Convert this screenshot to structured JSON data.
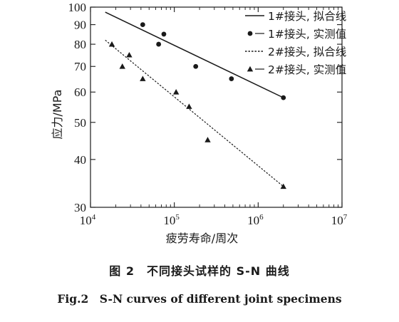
{
  "chart_data": {
    "type": "line",
    "title": "",
    "xlabel": "疲劳寿命/周次",
    "ylabel": "应力/MPa",
    "xscale": "log",
    "yscale": "log",
    "xlim": [
      10000,
      10000000
    ],
    "ylim": [
      30,
      100
    ],
    "x_ticks": [
      {
        "value": 10000,
        "base": "10",
        "exp": "4"
      },
      {
        "value": 100000,
        "base": "10",
        "exp": "5"
      },
      {
        "value": 1000000,
        "base": "10",
        "exp": "6"
      },
      {
        "value": 10000000,
        "base": "10",
        "exp": "7"
      }
    ],
    "y_ticks": [
      {
        "value": 30,
        "label": "30"
      },
      {
        "value": 40,
        "label": "40"
      },
      {
        "value": 50,
        "label": "50"
      },
      {
        "value": 60,
        "label": "60"
      },
      {
        "value": 70,
        "label": "70"
      },
      {
        "value": 80,
        "label": "80"
      },
      {
        "value": 90,
        "label": "90"
      },
      {
        "value": 100,
        "label": "100"
      }
    ],
    "legend_position": "top-right",
    "series": [
      {
        "name": "1#接头, 拟合线",
        "kind": "fit",
        "line_style": "solid",
        "points": [
          {
            "x": 15000,
            "y": 97
          },
          {
            "x": 2000000,
            "y": 58
          }
        ]
      },
      {
        "name": "1#接头, 实测值",
        "kind": "measured",
        "marker": "circle",
        "points": [
          {
            "x": 42000,
            "y": 90
          },
          {
            "x": 75000,
            "y": 85
          },
          {
            "x": 65000,
            "y": 80
          },
          {
            "x": 180000,
            "y": 70
          },
          {
            "x": 480000,
            "y": 65
          },
          {
            "x": 2000000,
            "y": 58
          }
        ]
      },
      {
        "name": "2#接头, 拟合线",
        "kind": "fit",
        "line_style": "dashed",
        "points": [
          {
            "x": 15000,
            "y": 82
          },
          {
            "x": 2000000,
            "y": 34
          }
        ]
      },
      {
        "name": "2#接头, 实测值",
        "kind": "measured",
        "marker": "triangle",
        "points": [
          {
            "x": 18000,
            "y": 80
          },
          {
            "x": 29000,
            "y": 75
          },
          {
            "x": 24000,
            "y": 70
          },
          {
            "x": 42000,
            "y": 65
          },
          {
            "x": 105000,
            "y": 60
          },
          {
            "x": 150000,
            "y": 55
          },
          {
            "x": 250000,
            "y": 45
          },
          {
            "x": 2000000,
            "y": 34
          }
        ]
      }
    ]
  },
  "caption": {
    "cn": "图 2　不同接头试样的 S-N 曲线",
    "en": "Fig.2　S-N curves of different joint specimens"
  }
}
